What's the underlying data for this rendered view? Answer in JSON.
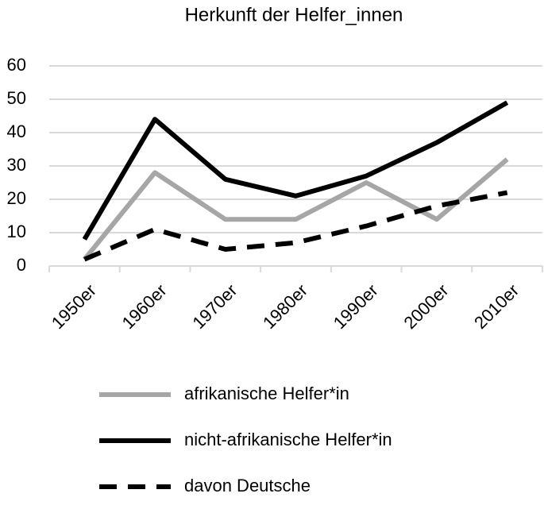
{
  "chart_data": {
    "type": "line",
    "title": "Herkunft der Helfer_innen",
    "categories": [
      "1950er",
      "1960er",
      "1970er",
      "1980er",
      "1990er",
      "2000er",
      "2010er"
    ],
    "series": [
      {
        "name": "afrikanische Helfer*in",
        "color": "#a6a6a6",
        "line_style": "solid",
        "values": [
          2,
          28,
          14,
          14,
          25,
          14,
          32
        ]
      },
      {
        "name": "nicht-afrikanische Helfer*in",
        "color": "#000000",
        "line_style": "solid",
        "values": [
          8,
          44,
          26,
          21,
          27,
          37,
          49
        ]
      },
      {
        "name": "davon Deutsche",
        "color": "#000000",
        "line_style": "dashed",
        "values": [
          2,
          11,
          5,
          7,
          12,
          18,
          22
        ]
      }
    ],
    "ylim": [
      0,
      60
    ],
    "yticks": [
      0,
      10,
      20,
      30,
      40,
      50,
      60
    ],
    "grid": true,
    "legend": "bottom"
  }
}
